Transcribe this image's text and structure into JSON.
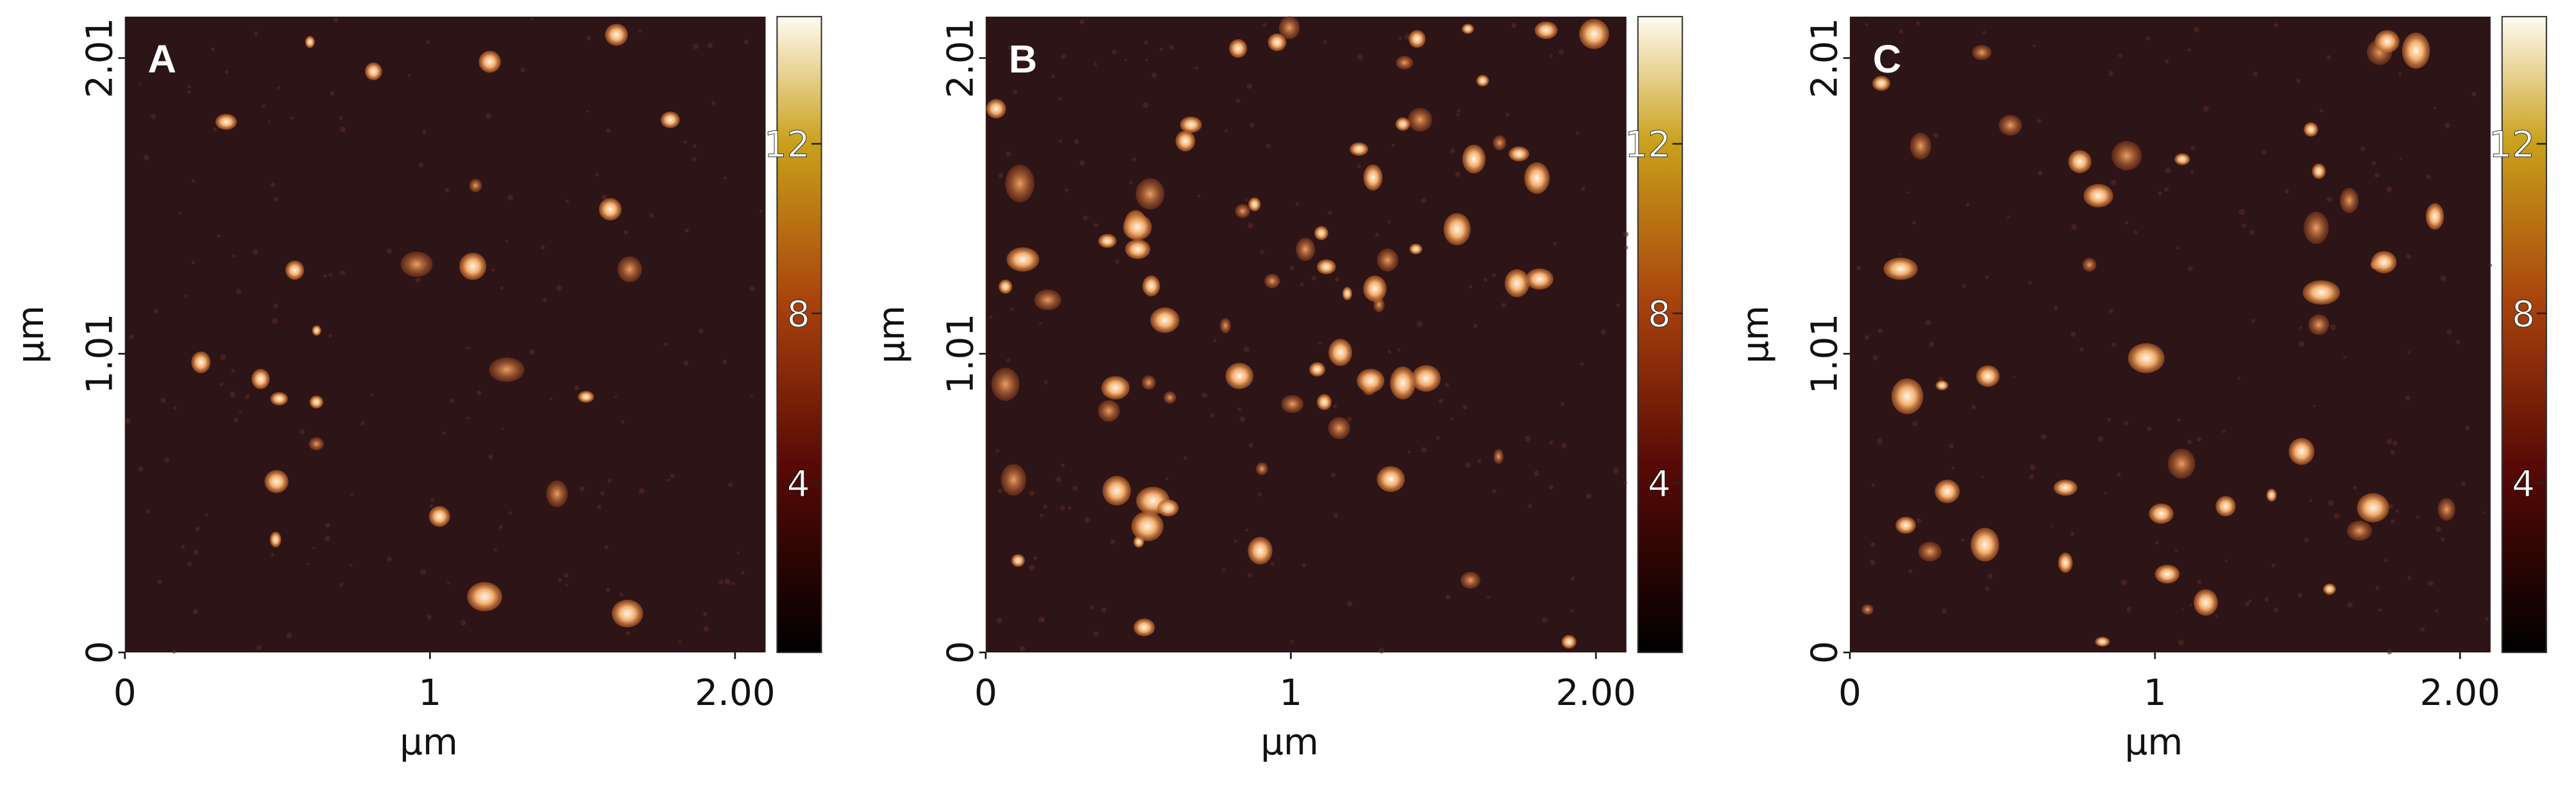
{
  "panels": [
    {
      "label": "A",
      "x_label": "μm",
      "y_label": "μm",
      "xticks": [
        0,
        1,
        {
          "value": 2,
          "label": "2.00"
        }
      ],
      "yticks": [
        0,
        1.01,
        2.01
      ],
      "xlim": [
        0,
        2.1
      ],
      "ylim": [
        0,
        2.15
      ],
      "colorbar_ticks": [
        4,
        8,
        12
      ],
      "colorbar_lim": [
        0,
        15
      ]
    },
    {
      "label": "B",
      "x_label": "μm",
      "y_label": "μm",
      "xticks": [
        0,
        1,
        {
          "value": 2,
          "label": "2.00"
        }
      ],
      "yticks": [
        0,
        1.01,
        2.01
      ],
      "xlim": [
        0,
        2.1
      ],
      "ylim": [
        0,
        2.15
      ],
      "colorbar_ticks": [
        4,
        8,
        12
      ],
      "colorbar_lim": [
        0,
        15
      ]
    },
    {
      "label": "C",
      "x_label": "μm",
      "y_label": "μm",
      "xticks": [
        0,
        1,
        {
          "value": 2,
          "label": "2.00"
        }
      ],
      "yticks": [
        0,
        1.01,
        2.01
      ],
      "xlim": [
        0,
        2.1
      ],
      "ylim": [
        0,
        2.15
      ],
      "colorbar_ticks": [
        4,
        8,
        12
      ],
      "colorbar_lim": [
        0,
        15
      ]
    }
  ]
}
